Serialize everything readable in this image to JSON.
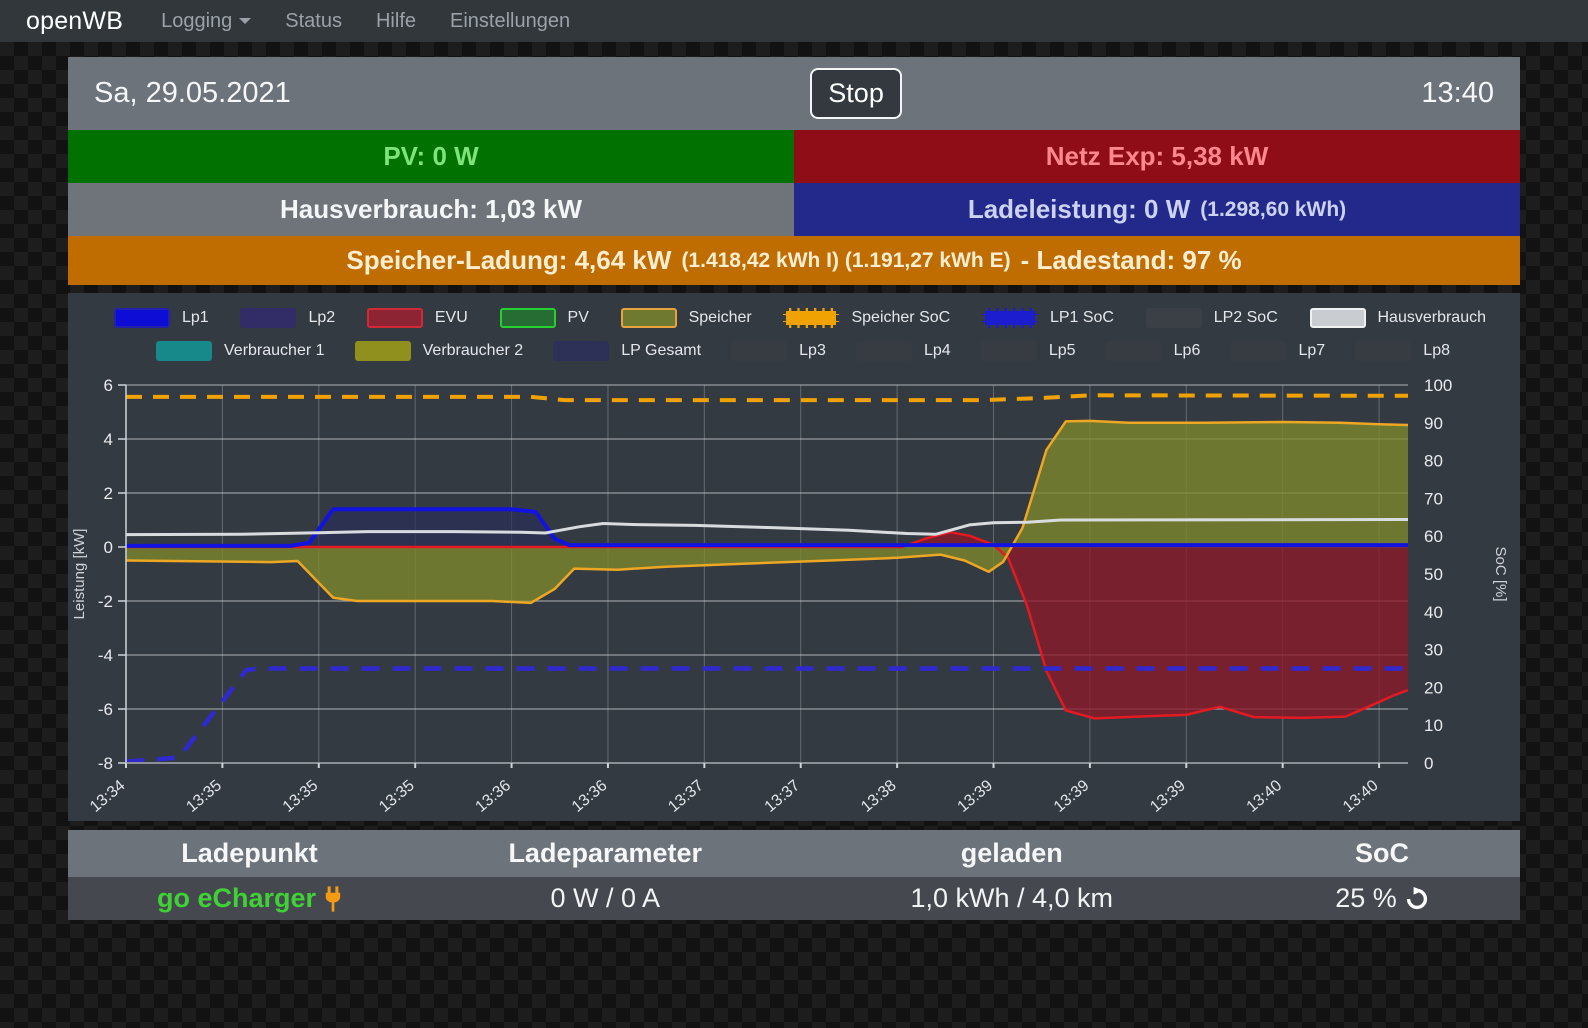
{
  "navbar": {
    "brand": "openWB",
    "items": [
      {
        "label": "Logging",
        "caret": true
      },
      {
        "label": "Status",
        "caret": false
      },
      {
        "label": "Hilfe",
        "caret": false
      },
      {
        "label": "Einstellungen",
        "caret": false
      }
    ]
  },
  "statusbar": {
    "date": "Sa, 29.05.2021",
    "stop_label": "Stop",
    "time": "13:40"
  },
  "tiles": {
    "pv": {
      "label": "PV: 0 W",
      "bg": "#017101",
      "fg": "#7ee37a"
    },
    "netz": {
      "label": "Netz Exp: 5,38 kW",
      "bg": "#8e0d17",
      "fg": "#ff878d"
    },
    "haus": {
      "label": "Hausverbrauch: 1,03 kW",
      "bg": "#6f747a",
      "fg": "#f5f6f7"
    },
    "lade": {
      "label": "Ladeleistung: 0 W",
      "detail": "(1.298,60 kWh)",
      "bg": "#23288b",
      "fg": "#ccd3f2"
    },
    "speicher": {
      "label": "Speicher-Ladung: 4,64 kW",
      "detail": "(1.418,42 kWh I) (1.191,27 kWh E)",
      "suffix": "- Ladestand: 97 %",
      "bg": "#bf6c00",
      "fg": "#fdeed2"
    }
  },
  "chart_data": {
    "type": "line",
    "ylabel": "Leistung [kW]",
    "y2label": "SoC [%]",
    "ylim": [
      -8,
      6
    ],
    "yticks": [
      6,
      4,
      2,
      0,
      -2,
      -4,
      -6,
      -8
    ],
    "y2lim": [
      0,
      100
    ],
    "y2ticks": [
      100,
      90,
      80,
      70,
      60,
      50,
      40,
      30,
      20,
      10,
      0
    ],
    "xlim": [
      0,
      13.3
    ],
    "xtick_labels": [
      "13:34",
      "13:35",
      "13:35",
      "13:35",
      "13:36",
      "13:36",
      "13:37",
      "13:37",
      "13:38",
      "13:39",
      "13:39",
      "13:39",
      "13:40",
      "13:40"
    ],
    "grid": true,
    "legend_rows": [
      [
        {
          "label": "Lp1",
          "fill": "#0d0dd6",
          "border": "#2222aa",
          "dashed": false
        },
        {
          "label": "Lp2",
          "fill": "#322d67",
          "border": "#322d67",
          "dashed": false
        },
        {
          "label": "EVU",
          "fill": "#8c2433",
          "border": "#d02a38",
          "dashed": false
        },
        {
          "label": "PV",
          "fill": "#256d32",
          "border": "#27cf33",
          "dashed": false
        },
        {
          "label": "Speicher",
          "fill": "#6f7a30",
          "border": "#e8a33d",
          "dashed": false
        },
        {
          "label": "Speicher SoC",
          "fill": "#f0a202",
          "border": "#343a42",
          "dashed": true
        },
        {
          "label": "LP1 SoC",
          "fill": "#1d1dd0",
          "border": "#343a42",
          "dashed": true
        },
        {
          "label": "LP2 SoC",
          "fill": "#3b4046",
          "border": "#3b4046",
          "dashed": false
        },
        {
          "label": "Hausverbrauch",
          "fill": "#c9cdd1",
          "border": "#eef0f2",
          "dashed": false
        }
      ],
      [
        {
          "label": "Verbraucher 1",
          "fill": "#18898b",
          "border": "#18898b",
          "dashed": false
        },
        {
          "label": "Verbraucher 2",
          "fill": "#90901e",
          "border": "#90901e",
          "dashed": false
        },
        {
          "label": "LP Gesamt",
          "fill": "#2e3157",
          "border": "#2e3157",
          "dashed": false
        },
        {
          "label": "Lp3",
          "fill": "#373c42",
          "border": "#373c42",
          "dashed": false
        },
        {
          "label": "Lp4",
          "fill": "#373c42",
          "border": "#373c42",
          "dashed": false
        },
        {
          "label": "Lp5",
          "fill": "#373c42",
          "border": "#373c42",
          "dashed": false
        },
        {
          "label": "Lp6",
          "fill": "#373c42",
          "border": "#373c42",
          "dashed": false
        },
        {
          "label": "Lp7",
          "fill": "#373c42",
          "border": "#373c42",
          "dashed": false
        },
        {
          "label": "Lp8",
          "fill": "#373c42",
          "border": "#373c42",
          "dashed": false
        }
      ]
    ],
    "series": [
      {
        "name": "EVU",
        "color": "#e31a22",
        "width": 2.5,
        "fill": "rgba(139,26,42,0.8)",
        "points": [
          [
            0,
            0
          ],
          [
            8.05,
            0
          ],
          [
            8.3,
            0.32
          ],
          [
            8.55,
            0.55
          ],
          [
            8.75,
            0.42
          ],
          [
            9.0,
            0.08
          ],
          [
            9.15,
            -0.4
          ],
          [
            9.35,
            -2.2
          ],
          [
            9.55,
            -4.6
          ],
          [
            9.75,
            -6.05
          ],
          [
            10.05,
            -6.35
          ],
          [
            10.5,
            -6.28
          ],
          [
            11.0,
            -6.22
          ],
          [
            11.35,
            -5.92
          ],
          [
            11.7,
            -6.3
          ],
          [
            12.2,
            -6.33
          ],
          [
            12.65,
            -6.28
          ],
          [
            12.9,
            -5.9
          ],
          [
            13.15,
            -5.5
          ],
          [
            13.3,
            -5.3
          ]
        ]
      },
      {
        "name": "Speicher",
        "color": "#eda723",
        "width": 2.5,
        "fill": "rgba(124,135,44,0.8)",
        "points": [
          [
            0,
            -0.5
          ],
          [
            1.5,
            -0.56
          ],
          [
            1.78,
            -0.52
          ],
          [
            2.15,
            -1.88
          ],
          [
            2.4,
            -2.0
          ],
          [
            3.8,
            -2.0
          ],
          [
            4.2,
            -2.07
          ],
          [
            4.45,
            -1.55
          ],
          [
            4.65,
            -0.8
          ],
          [
            5.1,
            -0.84
          ],
          [
            5.6,
            -0.73
          ],
          [
            6.4,
            -0.62
          ],
          [
            7.3,
            -0.5
          ],
          [
            8.0,
            -0.4
          ],
          [
            8.45,
            -0.28
          ],
          [
            8.7,
            -0.5
          ],
          [
            8.95,
            -0.92
          ],
          [
            9.1,
            -0.55
          ],
          [
            9.3,
            0.7
          ],
          [
            9.55,
            3.6
          ],
          [
            9.75,
            4.65
          ],
          [
            10.0,
            4.67
          ],
          [
            10.4,
            4.6
          ],
          [
            11.2,
            4.6
          ],
          [
            12.0,
            4.63
          ],
          [
            12.6,
            4.6
          ],
          [
            13.0,
            4.55
          ],
          [
            13.3,
            4.52
          ]
        ]
      },
      {
        "name": "Lp1",
        "color": "#1313e0",
        "width": 4,
        "fill": "rgba(43,46,88,0.7)",
        "points": [
          [
            0,
            0.04
          ],
          [
            1.7,
            0.04
          ],
          [
            1.9,
            0.15
          ],
          [
            2.15,
            1.4
          ],
          [
            4.0,
            1.4
          ],
          [
            4.25,
            1.3
          ],
          [
            4.45,
            0.3
          ],
          [
            4.6,
            0.07
          ],
          [
            13.3,
            0.07
          ]
        ]
      },
      {
        "name": "Hausverbrauch",
        "color": "#d9dcde",
        "width": 3,
        "points": [
          [
            0,
            0.46
          ],
          [
            1.2,
            0.47
          ],
          [
            2.0,
            0.53
          ],
          [
            2.5,
            0.57
          ],
          [
            3.4,
            0.57
          ],
          [
            4.1,
            0.55
          ],
          [
            4.35,
            0.52
          ],
          [
            4.7,
            0.75
          ],
          [
            4.95,
            0.87
          ],
          [
            5.3,
            0.83
          ],
          [
            5.9,
            0.8
          ],
          [
            6.7,
            0.72
          ],
          [
            7.5,
            0.62
          ],
          [
            8.1,
            0.5
          ],
          [
            8.4,
            0.47
          ],
          [
            8.75,
            0.82
          ],
          [
            9.0,
            0.9
          ],
          [
            9.35,
            0.92
          ],
          [
            9.7,
            1.0
          ],
          [
            13.3,
            1.02
          ]
        ]
      },
      {
        "name": "Speicher SoC",
        "color": "#f0a202",
        "width": 4,
        "dash": "16 11",
        "points": [
          [
            0,
            5.56
          ],
          [
            4.2,
            5.56
          ],
          [
            4.55,
            5.44
          ],
          [
            8.9,
            5.44
          ],
          [
            9.5,
            5.52
          ],
          [
            10.0,
            5.62
          ],
          [
            13.3,
            5.6
          ]
        ]
      },
      {
        "name": "LP1 SoC",
        "color": "#3029d0",
        "width": 4.5,
        "dash": "18 13",
        "points": [
          [
            0,
            -7.95
          ],
          [
            0.55,
            -7.8
          ],
          [
            1.25,
            -4.55
          ],
          [
            1.4,
            -4.5
          ],
          [
            13.3,
            -4.5
          ]
        ]
      },
      {
        "name": "LP2 SoC",
        "color": "#aeb4ba",
        "width": 2,
        "dash": "10 9",
        "points": [
          [
            0,
            -8
          ],
          [
            13.3,
            -8
          ]
        ]
      }
    ]
  },
  "table": {
    "headers": [
      "Ladepunkt",
      "Ladeparameter",
      "geladen",
      "SoC"
    ],
    "rows": [
      {
        "ladepunkt": "go eCharger",
        "params": "0 W / 0 A",
        "geladen": "1,0 kWh / 4,0 km",
        "soc": "25 %"
      }
    ]
  }
}
